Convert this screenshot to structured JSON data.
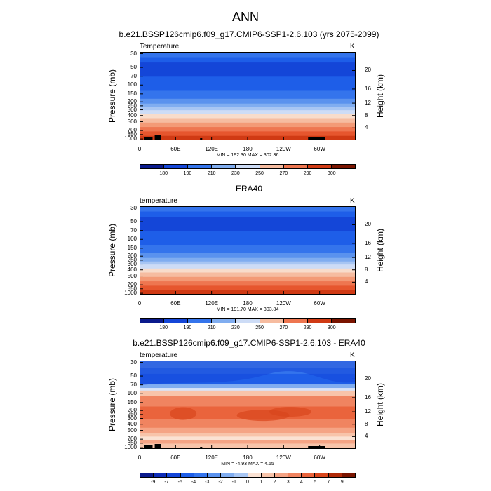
{
  "main_title": "ANN",
  "colors": {
    "temp_scale": [
      "#0a1a8c",
      "#0d2cb8",
      "#1446d8",
      "#1e5ee8",
      "#3474ec",
      "#5a92ee",
      "#80adf0",
      "#a8c6f3",
      "#cddcf6",
      "#f8dccb",
      "#f6bca0",
      "#f39a76",
      "#ee7650",
      "#e6562e",
      "#d03a14",
      "#a82408",
      "#7a1400"
    ],
    "diff_scale": [
      "#0a1a8c",
      "#0d2cb8",
      "#1446d8",
      "#1e5ee8",
      "#3474ec",
      "#5a92ee",
      "#80adf0",
      "#a8c6f3",
      "#d9e4f7",
      "#fbe2d3",
      "#f8c4aa",
      "#f5a485",
      "#f08460",
      "#ea643c",
      "#d9461c",
      "#b02a08",
      "#7a1400"
    ]
  },
  "panels": [
    {
      "title": "b.e21.BSSP126cmip6.f09_g17.CMIP6-SSP1-2.6.103 (yrs 2075-2099)",
      "label_left": "Temperature",
      "label_right": "K",
      "minmax": "MIN = 192.30  MAX = 302.36",
      "colorbar_labels": [
        "180",
        "190",
        "210",
        "230",
        "250",
        "270",
        "290",
        "300"
      ],
      "kind": "temp"
    },
    {
      "title": "ERA40",
      "label_left": "temperature",
      "label_right": "K",
      "minmax": "MIN = 191.70  MAX = 303.84",
      "colorbar_labels": [
        "180",
        "190",
        "210",
        "230",
        "250",
        "270",
        "290",
        "300"
      ],
      "kind": "temp"
    },
    {
      "title": "b.e21.BSSP126cmip6.f09_g17.CMIP6-SSP1-2.6.103 - ERA40",
      "label_left": "temperature",
      "label_right": "K",
      "minmax": "MIN =  -4.93  MAX =   4.55",
      "colorbar_labels": [
        "-9",
        "-7",
        "-5",
        "-4",
        "-3",
        "-2",
        "-1",
        "0",
        "1",
        "2",
        "3",
        "4",
        "5",
        "7",
        "9"
      ],
      "kind": "diff"
    }
  ],
  "axes": {
    "y_left_title": "Pressure (mb)",
    "y_right_title": "Height (km)",
    "pressure_ticks": [
      "30",
      "50",
      "70",
      "100",
      "150",
      "200",
      "250",
      "300",
      "400",
      "500",
      "700",
      "850",
      "1000"
    ],
    "height_ticks": [
      "20",
      "16",
      "12",
      "8",
      "4"
    ],
    "lon_ticks": [
      "0",
      "60E",
      "120E",
      "180",
      "120W",
      "60W"
    ]
  },
  "chart_data": [
    {
      "type": "heatmap",
      "title": "b.e21.BSSP126cmip6.f09_g17.CMIP6-SSP1-2.6.103 (yrs 2075-2099)",
      "variable": "Temperature",
      "units": "K",
      "x_ticks": [
        "0",
        "60E",
        "120E",
        "180",
        "120W",
        "60W"
      ],
      "y_ticks": [
        "30",
        "50",
        "70",
        "100",
        "150",
        "200",
        "250",
        "300",
        "400",
        "500",
        "700",
        "850",
        "1000"
      ],
      "ylabel": "Pressure (mb)",
      "ylabel_right": "Height (km)",
      "min": 192.3,
      "max": 302.36,
      "colorbar": [
        180,
        190,
        210,
        230,
        250,
        270,
        290,
        300
      ]
    },
    {
      "type": "heatmap",
      "title": "ERA40",
      "variable": "temperature",
      "units": "K",
      "x_ticks": [
        "0",
        "60E",
        "120E",
        "180",
        "120W",
        "60W"
      ],
      "y_ticks": [
        "30",
        "50",
        "70",
        "100",
        "150",
        "200",
        "250",
        "300",
        "400",
        "500",
        "700",
        "850",
        "1000"
      ],
      "ylabel": "Pressure (mb)",
      "ylabel_right": "Height (km)",
      "min": 191.7,
      "max": 303.84,
      "colorbar": [
        180,
        190,
        210,
        230,
        250,
        270,
        290,
        300
      ]
    },
    {
      "type": "heatmap",
      "title": "b.e21.BSSP126cmip6.f09_g17.CMIP6-SSP1-2.6.103 - ERA40",
      "variable": "temperature",
      "units": "K",
      "x_ticks": [
        "0",
        "60E",
        "120E",
        "180",
        "120W",
        "60W"
      ],
      "y_ticks": [
        "30",
        "50",
        "70",
        "100",
        "150",
        "200",
        "250",
        "300",
        "400",
        "500",
        "700",
        "850",
        "1000"
      ],
      "ylabel": "Pressure (mb)",
      "ylabel_right": "Height (km)",
      "min": -4.93,
      "max": 4.55,
      "colorbar": [
        -9,
        -7,
        -5,
        -4,
        -3,
        -2,
        -1,
        0,
        1,
        2,
        3,
        4,
        5,
        7,
        9
      ]
    }
  ]
}
